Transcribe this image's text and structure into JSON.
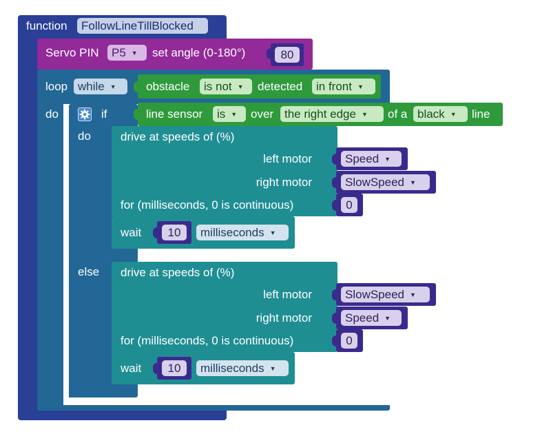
{
  "colors": {
    "function": "#2a3f96",
    "servo": "#922a98",
    "loop": "#226796",
    "condition": "#2e9a3c",
    "motor": "#1f8e93",
    "variable": "#3b2a8d"
  },
  "function_block": {
    "keyword": "function",
    "name": "FollowLineTillBlocked"
  },
  "servo_block": {
    "label": "Servo PIN",
    "pin": "P5",
    "mid": "set angle (0-180°)",
    "angle": "80"
  },
  "loop_block": {
    "label": "loop",
    "mode": "while",
    "do_label": "do"
  },
  "obstacle_cond": {
    "label": "obstacle",
    "state": "is not",
    "mid": "detected",
    "direction": "in front"
  },
  "if_block": {
    "gear_icon": "gear-icon",
    "if_label": "if",
    "do_label": "do",
    "else_label": "else"
  },
  "line_cond": {
    "label": "line sensor",
    "state": "is",
    "mid": "over",
    "edge": "the right edge",
    "of_label": "of a",
    "color": "black",
    "end_label": "line"
  },
  "drive_do": {
    "title": "drive at speeds of (%)",
    "left_label": "left motor",
    "left_value": "Speed",
    "right_label": "right motor",
    "right_value": "SlowSpeed",
    "time_label": "for (milliseconds, 0 is continuous)",
    "time_value": "0"
  },
  "wait_do": {
    "label": "wait",
    "value": "10",
    "unit": "milliseconds"
  },
  "drive_else": {
    "title": "drive at speeds of (%)",
    "left_label": "left motor",
    "left_value": "SlowSpeed",
    "right_label": "right motor",
    "right_value": "Speed",
    "time_label": "for (milliseconds, 0 is continuous)",
    "time_value": "0"
  },
  "wait_else": {
    "label": "wait",
    "value": "10",
    "unit": "milliseconds"
  }
}
